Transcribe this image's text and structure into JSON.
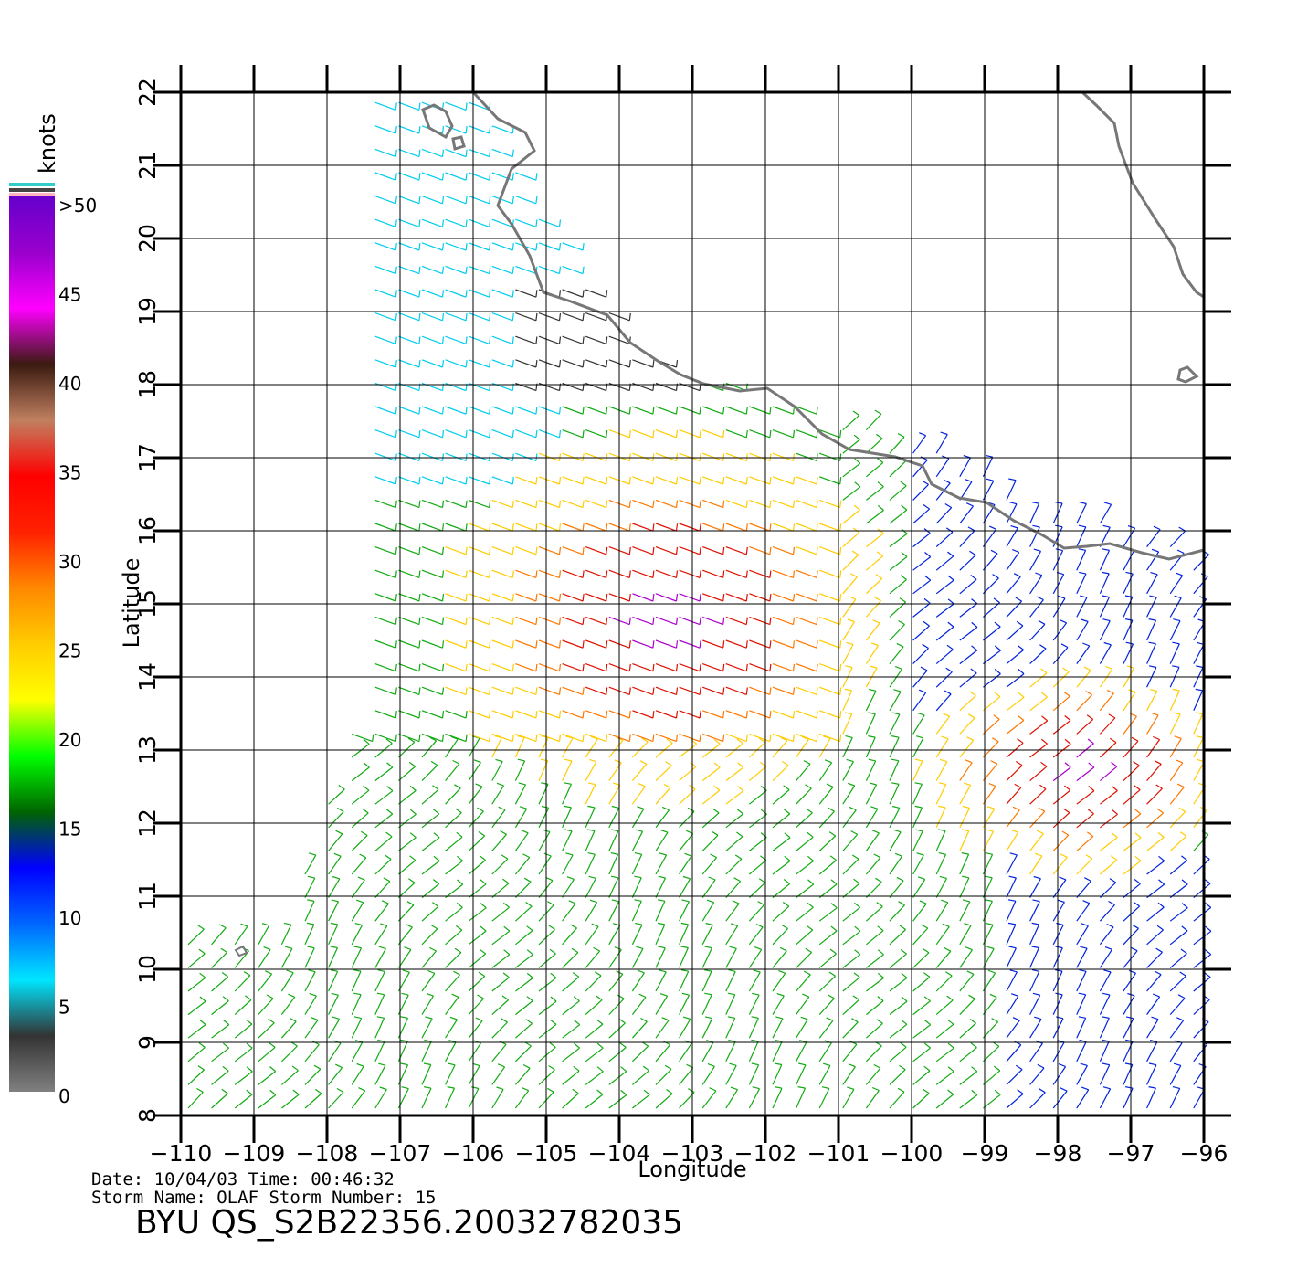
{
  "colorbar": {
    "title": "knots",
    "labels": [
      ">50",
      "45",
      "40",
      "35",
      "30",
      "25",
      "20",
      "15",
      "10",
      "5",
      "0"
    ],
    "stops": [
      "#808080",
      "#333333",
      "#00e5ff",
      "#0066ff",
      "#0000ff",
      "#006400",
      "#00ff00",
      "#ffff00",
      "#ffcc00",
      "#ff8800",
      "#ff2200",
      "#ff0000",
      "#c08060",
      "#3a1a10",
      "#ff00ff",
      "#9900cc",
      "#6600cc"
    ]
  },
  "axes": {
    "xlabel": "Longitude",
    "ylabel": "Latitude",
    "x_ticks": [
      "-110",
      "-109",
      "-108",
      "-107",
      "-106",
      "-105",
      "-104",
      "-103",
      "-102",
      "-101",
      "-100",
      "-99",
      "-98",
      "-97",
      "-96"
    ],
    "y_ticks": [
      "8",
      "9",
      "10",
      "11",
      "12",
      "13",
      "14",
      "15",
      "16",
      "17",
      "18",
      "19",
      "20",
      "21",
      "22"
    ],
    "x_range": [
      -110,
      -96
    ],
    "y_range": [
      8,
      22
    ]
  },
  "map": {
    "land_color": "#ffffff",
    "coast_color": "#777777",
    "speed_colors": {
      "calm": "#333333",
      "light": "#00ccee",
      "moderate": "#0022dd",
      "fresh": "#11aa11",
      "strong": "#ffcc00",
      "gale": "#ff7700",
      "storm": "#dd1100",
      "severe": "#aa00cc"
    }
  },
  "footer": {
    "line1": "Date: 10/04/03   Time: 00:46:32",
    "line2": "Storm  Name:  OLAF    Storm  Number:  15",
    "title": "BYU  QS_S2B22356.20032782035"
  }
}
